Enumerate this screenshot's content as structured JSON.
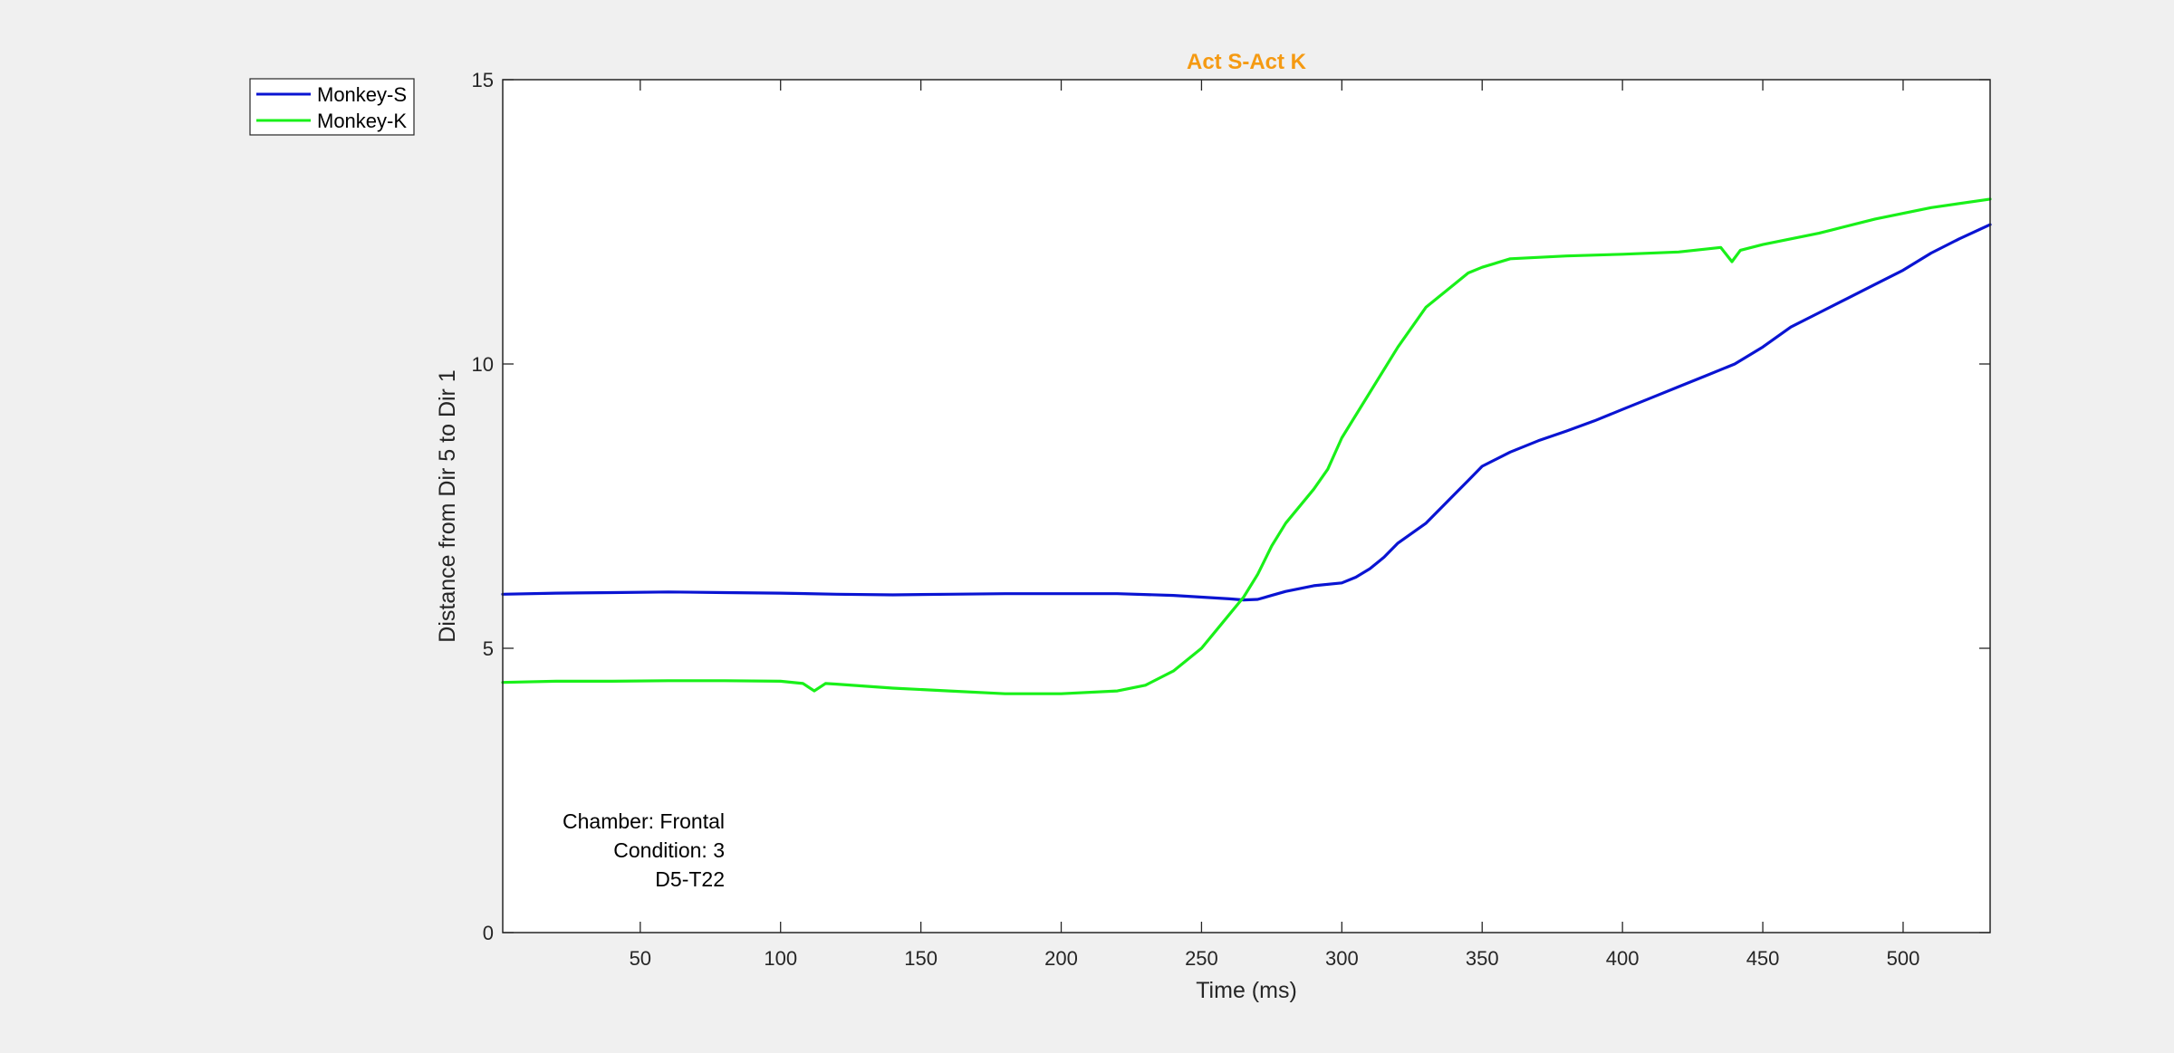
{
  "colors": {
    "background": "#f0f0f0",
    "plot_area": "#ffffff",
    "axis": "#262626",
    "title": "#f59a12",
    "monkey_s": "#0a14d2",
    "monkey_k": "#19f019"
  },
  "annotation": {
    "line1": "Chamber: Frontal",
    "line2": "Condition: 3",
    "line3": "D5-T22"
  },
  "chart_data": {
    "type": "line",
    "title": "Act S-Act K",
    "xlabel": "Time (ms)",
    "ylabel": "Distance from Dir 5 to Dir 1",
    "xlim": [
      1,
      531
    ],
    "ylim": [
      0,
      15
    ],
    "xticks": [
      50,
      100,
      150,
      200,
      250,
      300,
      350,
      400,
      450,
      500
    ],
    "yticks": [
      0,
      5,
      10,
      15
    ],
    "grid": false,
    "legend_position": "outside top-left",
    "series": [
      {
        "name": "Monkey-S",
        "color": "#0a14d2",
        "x": [
          1,
          20,
          40,
          60,
          80,
          100,
          120,
          140,
          160,
          180,
          200,
          220,
          240,
          250,
          260,
          265,
          270,
          275,
          280,
          290,
          300,
          305,
          310,
          315,
          320,
          330,
          340,
          345,
          350,
          360,
          370,
          380,
          390,
          400,
          410,
          420,
          430,
          440,
          450,
          460,
          470,
          480,
          490,
          500,
          510,
          520,
          531
        ],
        "y": [
          5.95,
          5.97,
          5.98,
          5.99,
          5.98,
          5.97,
          5.95,
          5.94,
          5.95,
          5.96,
          5.96,
          5.96,
          5.93,
          5.9,
          5.87,
          5.85,
          5.86,
          5.93,
          6.0,
          6.1,
          6.15,
          6.25,
          6.4,
          6.6,
          6.85,
          7.2,
          7.7,
          7.95,
          8.2,
          8.45,
          8.65,
          8.82,
          9.0,
          9.2,
          9.4,
          9.6,
          9.8,
          10.0,
          10.3,
          10.65,
          10.9,
          11.15,
          11.4,
          11.65,
          11.95,
          12.2,
          12.45
        ]
      },
      {
        "name": "Monkey-K",
        "color": "#19f019",
        "x": [
          1,
          20,
          40,
          60,
          80,
          100,
          108,
          112,
          116,
          120,
          140,
          160,
          180,
          200,
          220,
          230,
          240,
          250,
          255,
          260,
          265,
          270,
          275,
          280,
          290,
          295,
          300,
          310,
          320,
          330,
          340,
          345,
          350,
          360,
          380,
          400,
          420,
          435,
          439,
          442,
          450,
          470,
          490,
          510,
          531
        ],
        "y": [
          4.4,
          4.42,
          4.42,
          4.43,
          4.43,
          4.42,
          4.38,
          4.25,
          4.38,
          4.37,
          4.3,
          4.25,
          4.2,
          4.2,
          4.25,
          4.35,
          4.6,
          5.0,
          5.3,
          5.6,
          5.9,
          6.3,
          6.8,
          7.2,
          7.8,
          8.15,
          8.7,
          9.5,
          10.3,
          11.0,
          11.4,
          11.6,
          11.7,
          11.85,
          11.9,
          11.93,
          11.97,
          12.05,
          11.8,
          12.0,
          12.1,
          12.3,
          12.55,
          12.75,
          12.9
        ]
      }
    ]
  }
}
